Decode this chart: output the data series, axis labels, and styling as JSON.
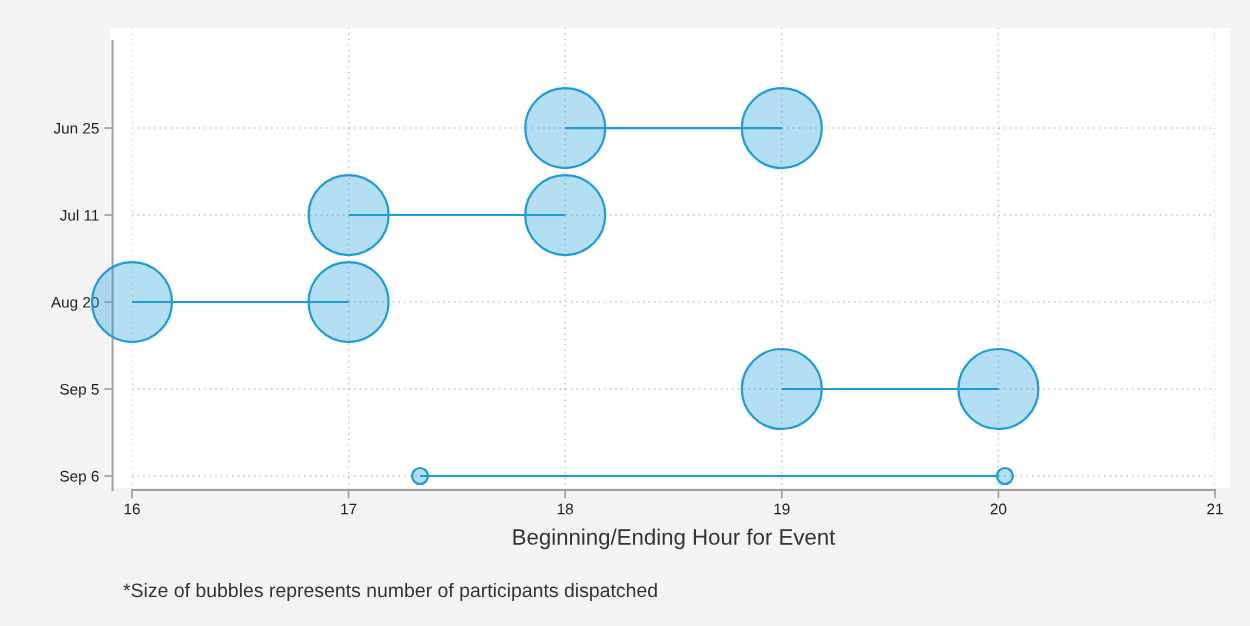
{
  "chart_data": {
    "type": "bubble",
    "orientation": "horizontal",
    "xlabel": "Beginning/Ending Hour for Event",
    "categories": [
      "Jun 25",
      "Jul 11",
      "Aug 20",
      "Sep 5",
      "Sep 6"
    ],
    "series": [
      {
        "type": "bar",
        "color": "#1a9dd9",
        "base": [
          18,
          17,
          16,
          19,
          17.33
        ],
        "values": [
          1,
          1,
          1,
          1,
          2.67
        ]
      },
      {
        "color": "#1a9dd9",
        "values": [
          18,
          17,
          16,
          19,
          17.33
        ],
        "sizes": [
          1,
          1,
          1,
          1,
          0.04
        ]
      },
      {
        "color": "#1a9dd9",
        "values": [
          19,
          18,
          17,
          20,
          20.03
        ],
        "sizes": [
          1,
          1,
          1,
          1,
          0.04
        ]
      }
    ],
    "xlim": [
      16,
      21
    ],
    "xticks": [
      16,
      17,
      18,
      19,
      20,
      21
    ],
    "grid": true,
    "annotations": [
      "*Size of bubbles represents number of participants dispatched"
    ]
  }
}
